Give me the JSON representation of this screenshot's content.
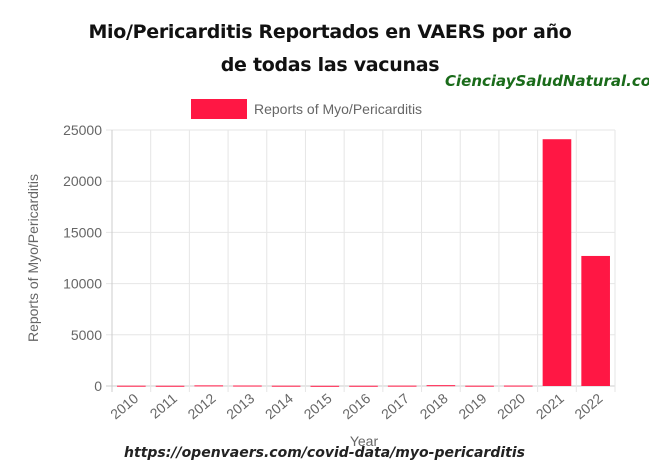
{
  "header": {
    "title_line1": "Mio/Pericarditis Reportados en VAERS  por año",
    "title_line2": "de todas las vacunas",
    "watermark": "CienciaySaludNatural.com",
    "source_url": "https://openvaers.com/covid-data/myo-pericarditis"
  },
  "chart_data": {
    "type": "bar",
    "categories": [
      "2010",
      "2011",
      "2012",
      "2013",
      "2014",
      "2015",
      "2016",
      "2017",
      "2018",
      "2019",
      "2020",
      "2021",
      "2022"
    ],
    "series": [
      {
        "name": "Reports of Myo/Pericarditis",
        "color": "#ff1744",
        "values": [
          30,
          25,
          60,
          45,
          30,
          20,
          25,
          35,
          80,
          30,
          40,
          24100,
          12700
        ]
      }
    ],
    "xlabel": "Year",
    "ylabel": "Reports of Myo/Pericarditis",
    "ylim": [
      0,
      25000
    ],
    "yticks": [
      0,
      5000,
      10000,
      15000,
      20000,
      25000
    ],
    "grid": true,
    "legend_position": "top"
  }
}
